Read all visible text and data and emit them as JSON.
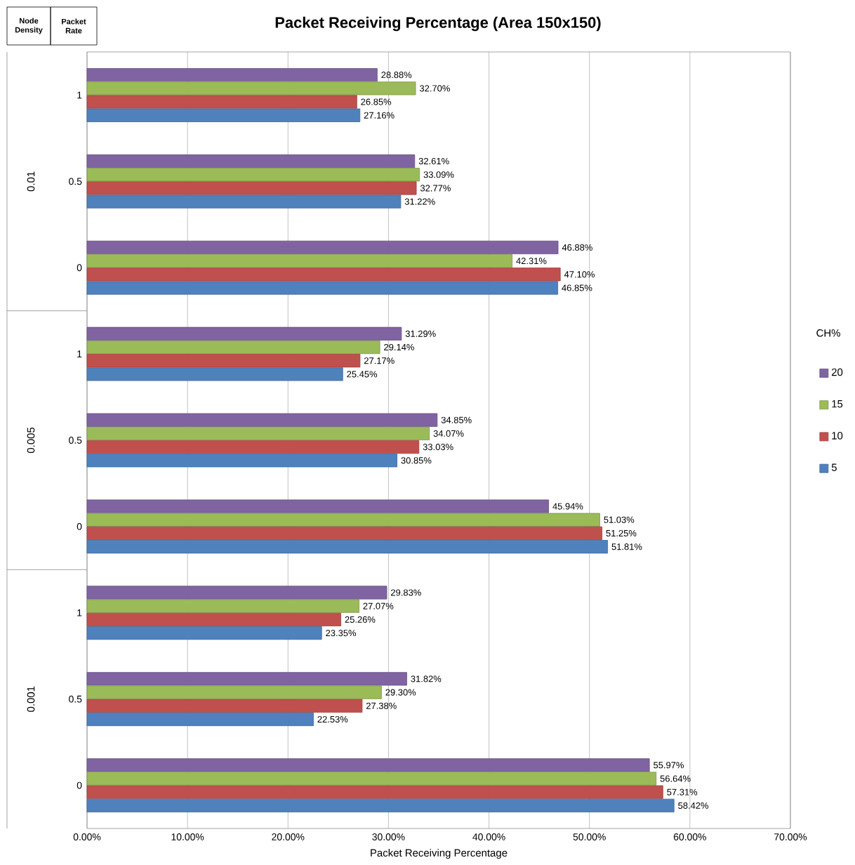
{
  "chart_data": {
    "type": "bar",
    "orientation": "horizontal",
    "title": "Packet Receiving Percentage (Area 150x150)",
    "xlabel": "Packet Receiving Percentage",
    "legend_title": "CH%",
    "legend": "right",
    "grid": "x",
    "categories": [
      "1",
      "0.5",
      "0",
      "1",
      "0.5",
      "0",
      "1",
      "0.5",
      "0"
    ],
    "series": [
      {
        "name": "20",
        "color": "#8064a2",
        "values": [
          28.88,
          32.61,
          46.88,
          31.29,
          34.85,
          45.94,
          29.83,
          31.82,
          55.97
        ],
        "value_labels": [
          "28.88%",
          "32.61%",
          "46.88%",
          "31.29%",
          "34.85%",
          "45.94%",
          "29.83%",
          "31.82%",
          "55.97%"
        ]
      },
      {
        "name": "15",
        "color": "#9bbb59",
        "values": [
          32.7,
          33.09,
          42.31,
          29.14,
          34.07,
          51.03,
          27.07,
          29.3,
          56.64
        ],
        "value_labels": [
          "32.70%",
          "33.09%",
          "42.31%",
          "29.14%",
          "34.07%",
          "51.03%",
          "27.07%",
          "29.30%",
          "56.64%"
        ]
      },
      {
        "name": "10",
        "color": "#c0504d",
        "values": [
          26.85,
          32.77,
          47.1,
          27.17,
          33.03,
          51.25,
          25.26,
          27.38,
          57.31
        ],
        "value_labels": [
          "26.85%",
          "32.77%",
          "47.10%",
          "27.17%",
          "33.03%",
          "51.25%",
          "25.26%",
          "27.38%",
          "57.31%"
        ]
      },
      {
        "name": "5",
        "color": "#4f81bd",
        "values": [
          27.16,
          31.22,
          46.85,
          25.45,
          30.85,
          51.81,
          23.35,
          22.53,
          58.42
        ],
        "value_labels": [
          "27.16%",
          "31.22%",
          "46.85%",
          "25.45%",
          "30.85%",
          "51.81%",
          "23.35%",
          "22.53%",
          "58.42%"
        ]
      }
    ],
    "xlim": [
      0,
      70
    ],
    "xticks": [
      {
        "value": 0,
        "label": "0.00%"
      },
      {
        "value": 10,
        "label": "10.00%"
      },
      {
        "value": 20,
        "label": "20.00%"
      },
      {
        "value": 30,
        "label": "30.00%"
      },
      {
        "value": 40,
        "label": "40.00%"
      },
      {
        "value": 50,
        "label": "50.00%"
      },
      {
        "value": 60,
        "label": "60.00%"
      },
      {
        "value": 70,
        "label": "70.00%"
      }
    ],
    "annotations": [
      "Node Density",
      "Packet Rate",
      "0.01",
      "0.005",
      "0.001"
    ]
  }
}
